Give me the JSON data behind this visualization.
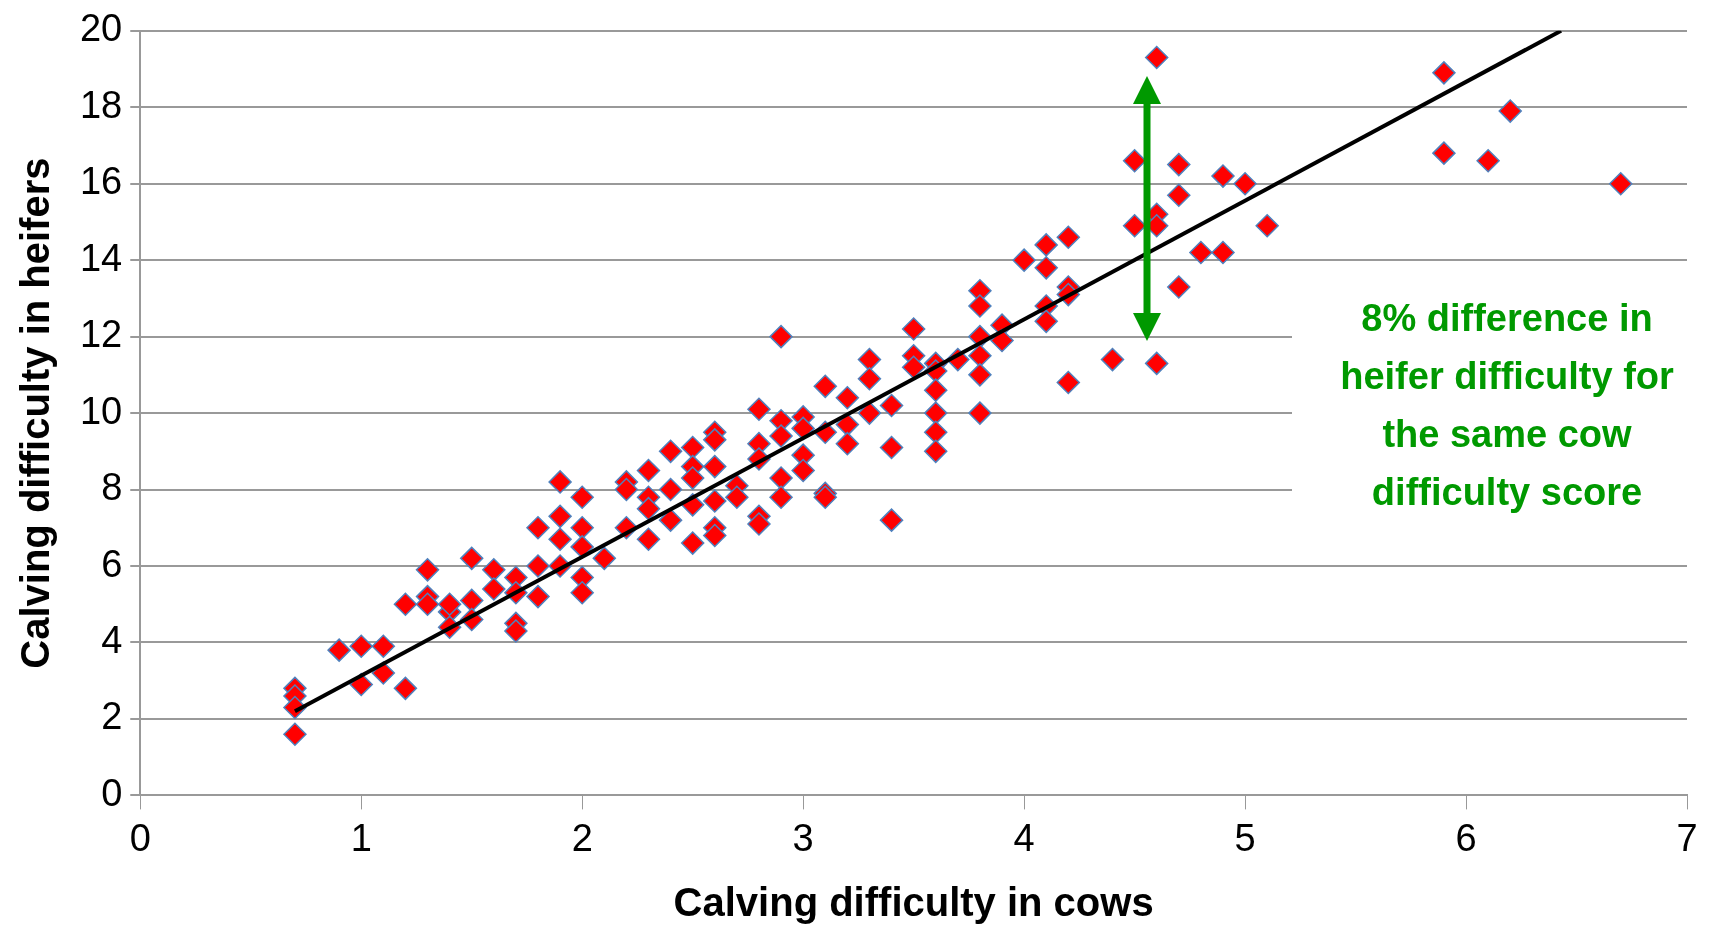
{
  "chart_data": {
    "type": "scatter",
    "xlabel": "Calving difficulty in cows",
    "ylabel": "Calving difficulty in heifers",
    "xlim": [
      0,
      7
    ],
    "xticks": [
      0,
      1,
      2,
      3,
      4,
      5,
      6,
      7
    ],
    "ylim": [
      0,
      20
    ],
    "yticks": [
      0,
      2,
      4,
      6,
      8,
      10,
      12,
      14,
      16,
      18,
      20
    ],
    "grid": "y",
    "legend": false,
    "marker": "diamond",
    "annotations": [
      "8% difference in heifer difficulty for the same cow difficulty score"
    ],
    "series": [
      {
        "color": "#ff0000",
        "x": [
          0.7,
          0.7,
          0.7,
          0.7,
          0.9,
          1.0,
          1.0,
          1.1,
          1.1,
          1.2,
          1.2,
          1.3,
          1.3,
          1.3,
          1.4,
          1.4,
          1.4,
          1.5,
          1.5,
          1.5,
          1.6,
          1.6,
          1.7,
          1.7,
          1.7,
          1.7,
          1.8,
          1.8,
          1.8,
          1.9,
          1.9,
          1.9,
          1.9,
          2.0,
          2.0,
          2.0,
          2.0,
          2.0,
          2.1,
          2.2,
          2.2,
          2.2,
          2.3,
          2.3,
          2.3,
          2.3,
          2.4,
          2.4,
          2.4,
          2.5,
          2.5,
          2.5,
          2.5,
          2.5,
          2.6,
          2.6,
          2.6,
          2.6,
          2.6,
          2.6,
          2.7,
          2.7,
          2.8,
          2.8,
          2.8,
          2.8,
          2.8,
          2.9,
          2.9,
          2.9,
          2.9,
          2.9,
          3.0,
          3.0,
          3.0,
          3.0,
          3.1,
          3.1,
          3.1,
          3.1,
          3.2,
          3.2,
          3.2,
          3.3,
          3.3,
          3.3,
          3.4,
          3.4,
          3.4,
          3.5,
          3.5,
          3.5,
          3.6,
          3.6,
          3.6,
          3.6,
          3.6,
          3.6,
          3.7,
          3.8,
          3.8,
          3.8,
          3.8,
          3.8,
          3.8,
          3.9,
          3.9,
          4.0,
          4.1,
          4.1,
          4.1,
          4.1,
          4.2,
          4.2,
          4.2,
          4.2,
          4.4,
          4.5,
          4.5,
          4.6,
          4.6,
          4.6,
          4.6,
          4.7,
          4.7,
          4.7,
          4.8,
          4.9,
          4.9,
          5.0,
          5.1,
          5.9,
          5.9,
          6.1,
          6.2,
          6.7
        ],
        "values": [
          2.8,
          2.6,
          2.3,
          1.6,
          3.8,
          3.9,
          2.9,
          3.9,
          3.2,
          5.0,
          2.8,
          5.9,
          5.2,
          5.0,
          4.8,
          4.4,
          5.0,
          6.2,
          5.1,
          4.6,
          5.9,
          5.4,
          5.7,
          5.3,
          4.5,
          4.3,
          7.0,
          6.0,
          5.2,
          8.2,
          7.3,
          6.7,
          6.0,
          7.8,
          7.0,
          6.5,
          5.7,
          5.3,
          6.2,
          8.2,
          8.0,
          7.0,
          8.5,
          7.8,
          7.5,
          6.7,
          9.0,
          8.0,
          7.2,
          9.1,
          8.6,
          8.3,
          7.6,
          6.6,
          9.5,
          9.3,
          8.6,
          7.7,
          7.0,
          6.8,
          8.1,
          7.8,
          10.1,
          9.2,
          8.8,
          7.3,
          7.1,
          12.0,
          9.8,
          9.4,
          8.3,
          7.8,
          9.9,
          9.6,
          8.9,
          8.5,
          10.7,
          9.5,
          7.9,
          7.8,
          10.4,
          9.7,
          9.2,
          11.4,
          10.9,
          10.0,
          10.2,
          9.1,
          7.2,
          12.2,
          11.5,
          11.2,
          11.3,
          11.1,
          10.6,
          10.0,
          9.5,
          9.0,
          11.4,
          13.2,
          12.8,
          12.0,
          11.5,
          11.0,
          10.0,
          12.3,
          11.9,
          14.0,
          14.4,
          13.8,
          12.8,
          12.4,
          14.6,
          13.3,
          13.1,
          10.8,
          11.4,
          16.6,
          14.9,
          19.3,
          15.2,
          14.9,
          11.3,
          16.5,
          15.7,
          13.3,
          14.2,
          16.2,
          14.2,
          16.0,
          14.9,
          18.9,
          16.8,
          16.6,
          17.9,
          16.0
        ]
      },
      {
        "type": "line",
        "color": "#000000",
        "marker": "none",
        "x": [
          0.7,
          6.43
        ],
        "values": [
          2.2,
          20
        ]
      }
    ]
  }
}
